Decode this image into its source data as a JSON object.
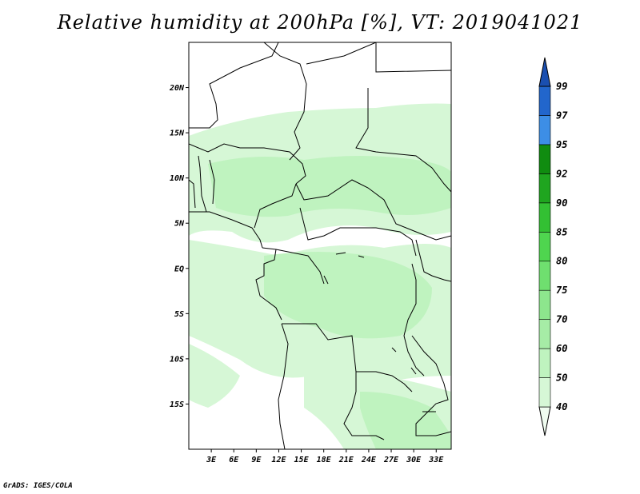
{
  "title": "Relative humidity at 200hPa [%], VT: 2019041021",
  "footer": "GrADS: IGES/COLA",
  "map": {
    "lon_range": [
      0,
      35
    ],
    "lat_range": [
      -20,
      25
    ],
    "lat_ticks": [
      {
        "value": 20,
        "label": "20N"
      },
      {
        "value": 15,
        "label": "15N"
      },
      {
        "value": 10,
        "label": "10N"
      },
      {
        "value": 5,
        "label": "5N"
      },
      {
        "value": 0,
        "label": "EQ"
      },
      {
        "value": -5,
        "label": "5S"
      },
      {
        "value": -10,
        "label": "10S"
      },
      {
        "value": -15,
        "label": "15S"
      }
    ],
    "lon_ticks": [
      {
        "value": 3,
        "label": "3E"
      },
      {
        "value": 6,
        "label": "6E"
      },
      {
        "value": 9,
        "label": "9E"
      },
      {
        "value": 12,
        "label": "12E"
      },
      {
        "value": 15,
        "label": "15E"
      },
      {
        "value": 18,
        "label": "18E"
      },
      {
        "value": 21,
        "label": "21E"
      },
      {
        "value": 24,
        "label": "24E"
      },
      {
        "value": 27,
        "label": "27E"
      },
      {
        "value": 30,
        "label": "30E"
      },
      {
        "value": 33,
        "label": "33E"
      }
    ]
  },
  "colorbar": {
    "levels": [
      "40",
      "50",
      "60",
      "70",
      "75",
      "80",
      "85",
      "90",
      "92",
      "95",
      "97",
      "99"
    ],
    "colors": [
      "#f0fcf0",
      "#d6f7d6",
      "#bff3bf",
      "#a6eca6",
      "#8de68d",
      "#6fdf6f",
      "#4fd54f",
      "#33c033",
      "#1fa51f",
      "#108c10",
      "#3d8ee6",
      "#2266cc",
      "#1a4fb0"
    ]
  },
  "colors": {
    "land_light": "#d6f7d6",
    "land_mid": "#bff3bf",
    "border": "#000000"
  }
}
